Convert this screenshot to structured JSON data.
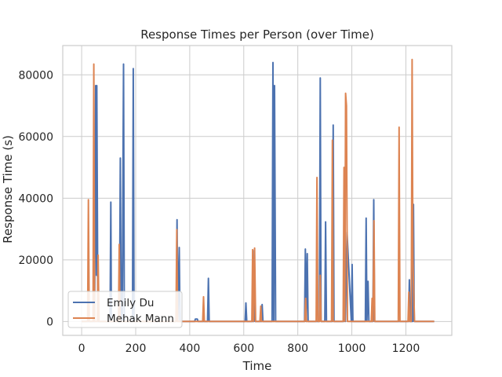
{
  "chart_data": {
    "type": "line",
    "title": "Response Times per Person (over Time)",
    "xlabel": "Time",
    "ylabel": "Response Time (s)",
    "xlim": [
      -70,
      1370
    ],
    "ylim": [
      -4500,
      89500
    ],
    "x_ticks": [
      0,
      200,
      400,
      600,
      800,
      1000,
      1200
    ],
    "y_ticks": [
      0,
      20000,
      40000,
      60000,
      80000
    ],
    "y_tick_labels": [
      "0",
      "20000",
      "40000",
      "60000",
      "80000"
    ],
    "grid": true,
    "legend_position": "lower-left",
    "series": [
      {
        "name": "Emily Du",
        "color": "#4c72b0",
        "x": [
          0,
          48,
          52,
          55,
          56,
          60,
          63,
          105,
          108,
          110,
          113,
          140,
          143,
          146,
          150,
          155,
          158,
          162,
          188,
          191,
          194,
          350,
          353,
          356,
          361,
          364,
          367,
          418,
          421,
          428,
          431,
          466,
          469,
          472,
          605,
          608,
          611,
          636,
          639,
          642,
          665,
          668,
          671,
          705,
          708,
          711,
          714,
          718,
          825,
          828,
          831,
          835,
          838,
          880,
          883,
          886,
          900,
          903,
          906,
          928,
          931,
          934,
          970,
          973,
          976,
          982,
          998,
          1001,
          1004,
          1050,
          1053,
          1056,
          1060,
          1063,
          1078,
          1081,
          1084,
          1210,
          1213,
          1216,
          1225,
          1228,
          1231,
          1305
        ],
        "y": [
          0,
          0,
          76500,
          15000,
          76500,
          0,
          0,
          0,
          38700,
          0,
          0,
          0,
          53000,
          5000,
          0,
          83500,
          0,
          0,
          0,
          82000,
          0,
          0,
          33000,
          0,
          24000,
          0,
          0,
          0,
          800,
          800,
          0,
          0,
          14000,
          0,
          0,
          6000,
          0,
          0,
          23000,
          0,
          0,
          5500,
          0,
          0,
          84000,
          0,
          76500,
          0,
          0,
          23500,
          0,
          22000,
          0,
          0,
          79000,
          0,
          0,
          32300,
          0,
          0,
          63700,
          0,
          0,
          49500,
          0,
          29000,
          0,
          18500,
          0,
          0,
          33500,
          0,
          13000,
          0,
          0,
          39500,
          0,
          0,
          13500,
          0,
          0,
          38000,
          0,
          0
        ]
      },
      {
        "name": "Mehak Mann",
        "color": "#dd8452",
        "x": [
          0,
          22,
          25,
          28,
          42,
          45,
          48,
          58,
          61,
          64,
          136,
          139,
          142,
          349,
          352,
          355,
          448,
          451,
          454,
          630,
          633,
          636,
          640,
          644,
          660,
          663,
          666,
          826,
          829,
          832,
          868,
          871,
          874,
          880,
          883,
          886,
          925,
          928,
          931,
          968,
          971,
          974,
          977,
          980,
          984,
          1072,
          1075,
          1078,
          1082,
          1085,
          1172,
          1175,
          1178,
          1208,
          1211,
          1214,
          1220,
          1223,
          1226,
          1232,
          1305
        ],
        "y": [
          0,
          0,
          39500,
          0,
          0,
          83500,
          0,
          0,
          21500,
          0,
          0,
          25000,
          0,
          0,
          29800,
          0,
          0,
          8000,
          0,
          0,
          23300,
          0,
          23800,
          0,
          0,
          5000,
          0,
          0,
          7500,
          0,
          0,
          46700,
          0,
          0,
          15000,
          0,
          0,
          58800,
          0,
          0,
          50000,
          0,
          74000,
          70000,
          0,
          0,
          7500,
          0,
          32700,
          0,
          0,
          63000,
          0,
          0,
          9500,
          0,
          0,
          85000,
          20000,
          0,
          0
        ]
      }
    ]
  }
}
